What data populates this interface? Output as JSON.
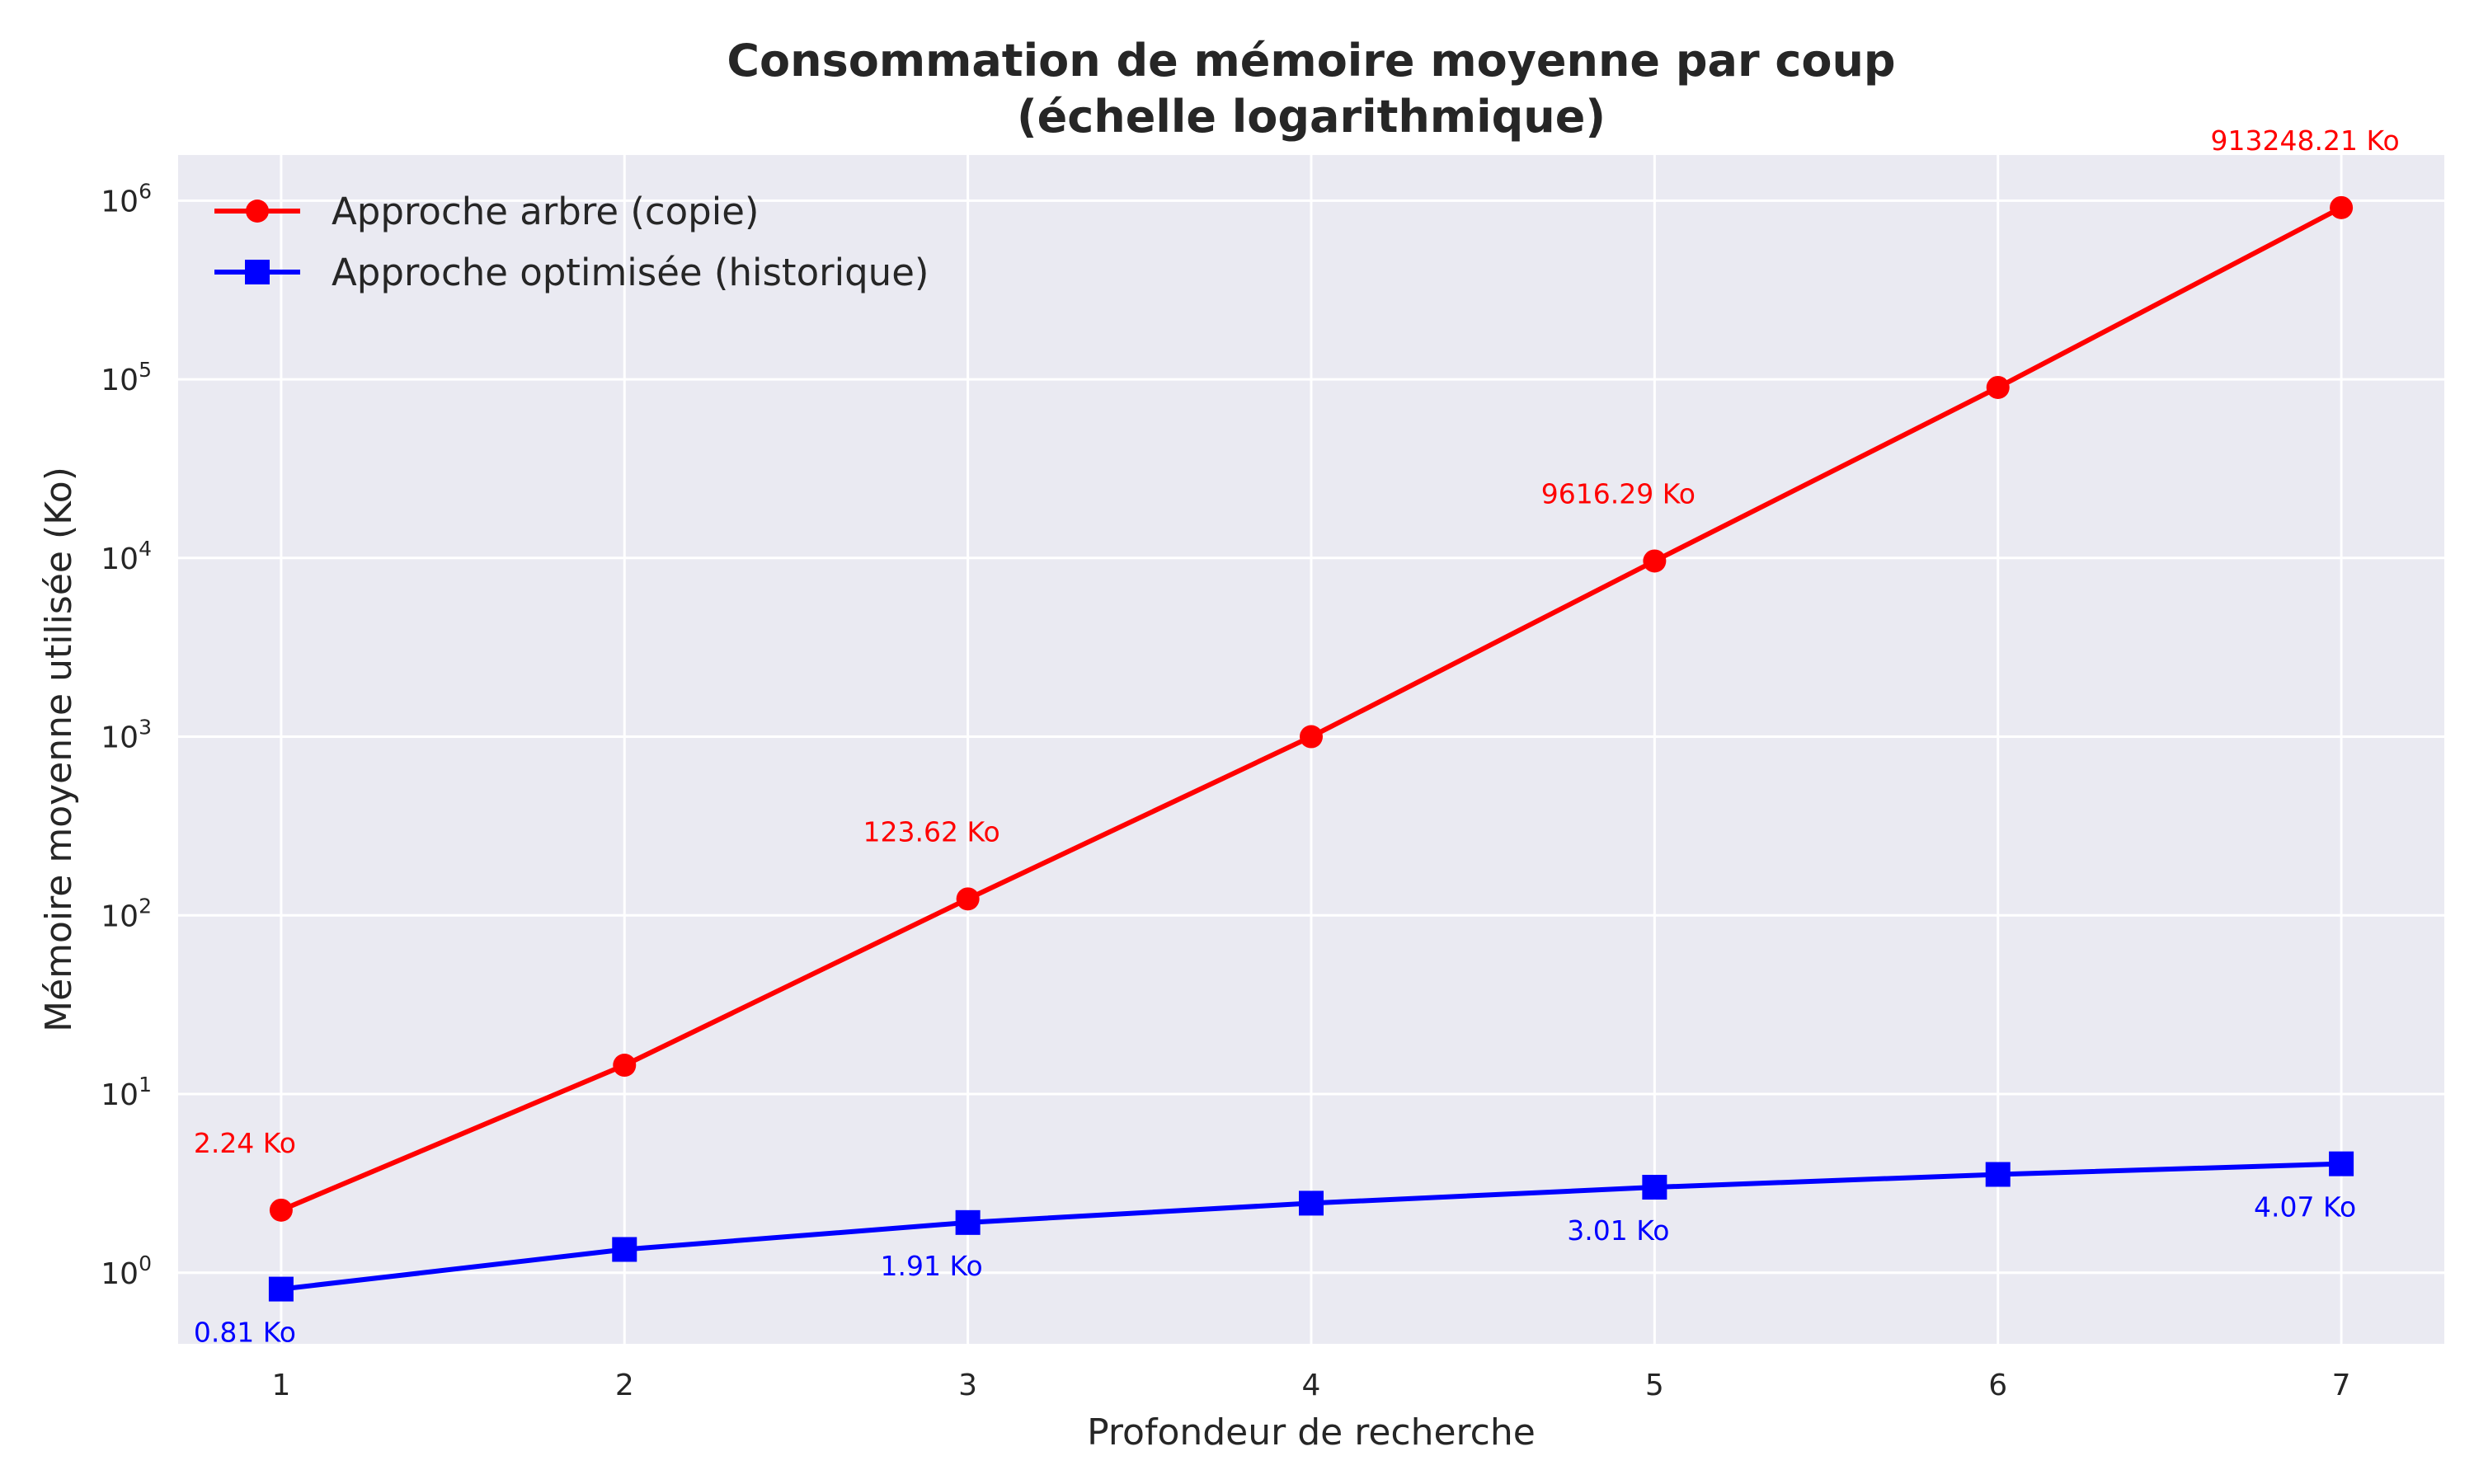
{
  "chart_data": {
    "type": "line",
    "title_line1": "Consommation de mémoire moyenne par coup",
    "title_line2": "(échelle logarithmique)",
    "xlabel": "Profondeur de recherche",
    "ylabel": "Mémoire moyenne utilisée (Ko)",
    "x": [
      1,
      2,
      3,
      4,
      5,
      6,
      7
    ],
    "x_tick_labels": [
      "1",
      "2",
      "3",
      "4",
      "5",
      "6",
      "7"
    ],
    "y_scale": "log",
    "y_ticks": [
      1,
      10,
      100,
      1000,
      10000,
      100000,
      1000000
    ],
    "y_tick_labels": [
      {
        "base": "10",
        "exp": "0"
      },
      {
        "base": "10",
        "exp": "1"
      },
      {
        "base": "10",
        "exp": "2"
      },
      {
        "base": "10",
        "exp": "3"
      },
      {
        "base": "10",
        "exp": "4"
      },
      {
        "base": "10",
        "exp": "5"
      },
      {
        "base": "10",
        "exp": "6"
      }
    ],
    "xlim": [
      0.7,
      7.3
    ],
    "ylim": [
      0.4,
      1800000
    ],
    "grid": true,
    "background": "#eaeaf2",
    "legend_position": "top-left",
    "series": [
      {
        "name": "Approche arbre (copie)",
        "color": "#ff0000",
        "marker": "circle",
        "values": [
          2.24,
          14.5,
          123.62,
          1000,
          9616.29,
          90000,
          913248.21
        ],
        "annotations": [
          {
            "x": 1,
            "y": 2.24,
            "text": "2.24 Ko"
          },
          {
            "x": 3,
            "y": 123.62,
            "text": "123.62 Ko"
          },
          {
            "x": 5,
            "y": 9616.29,
            "text": "9616.29 Ko"
          },
          {
            "x": 7,
            "y": 913248.21,
            "text": "913248.21 Ko"
          }
        ]
      },
      {
        "name": "Approche optimisée (historique)",
        "color": "#0000ff",
        "marker": "square",
        "values": [
          0.81,
          1.35,
          1.91,
          2.45,
          3.01,
          3.55,
          4.07
        ],
        "annotations": [
          {
            "x": 1,
            "y": 0.81,
            "text": "0.81 Ko"
          },
          {
            "x": 3,
            "y": 1.91,
            "text": "1.91 Ko"
          },
          {
            "x": 5,
            "y": 3.01,
            "text": "3.01 Ko"
          },
          {
            "x": 7,
            "y": 4.07,
            "text": "4.07 Ko"
          }
        ]
      }
    ]
  }
}
